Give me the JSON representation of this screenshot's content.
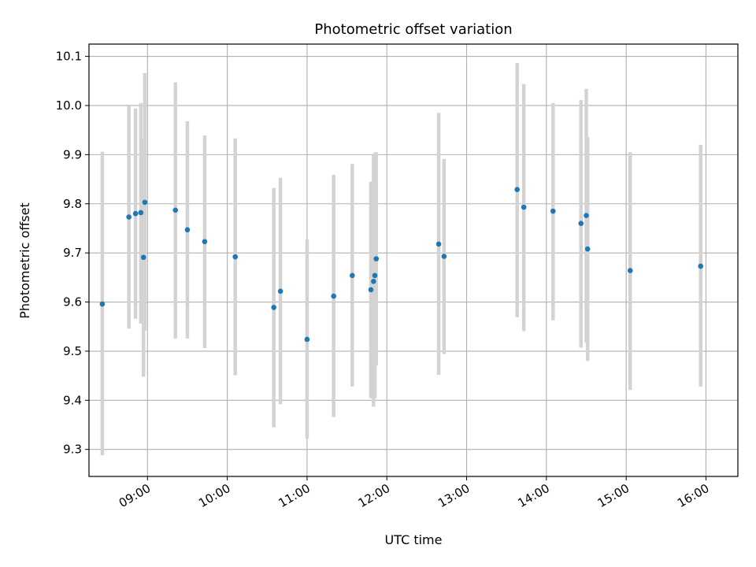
{
  "chart_data": {
    "type": "scatter",
    "title": "Photometric offset variation",
    "xlabel": "UTC time",
    "ylabel": "Photometric offset",
    "grid": true,
    "xlim": [
      "08:16",
      "16:24"
    ],
    "ylim": [
      9.245,
      10.125
    ],
    "x_ticks": [
      "09:00",
      "10:00",
      "11:00",
      "12:00",
      "13:00",
      "14:00",
      "15:00",
      "16:00"
    ],
    "y_ticks": [
      "9.3",
      "9.4",
      "9.5",
      "9.6",
      "9.7",
      "9.8",
      "9.9",
      "10.0",
      "10.1"
    ],
    "point_color": "#1f77b4",
    "errorbar_color": "#d3d3d3",
    "series": [
      {
        "points": [
          {
            "t": "08:26",
            "y": 9.596,
            "lo": 9.288,
            "hi": 9.906
          },
          {
            "t": "08:46",
            "y": 9.773,
            "lo": 9.546,
            "hi": 9.999
          },
          {
            "t": "08:51",
            "y": 9.78,
            "lo": 9.566,
            "hi": 9.994
          },
          {
            "t": "08:55",
            "y": 9.782,
            "lo": 9.556,
            "hi": 10.005
          },
          {
            "t": "08:57",
            "y": 9.691,
            "lo": 9.448,
            "hi": 9.935
          },
          {
            "t": "08:58",
            "y": 9.803,
            "lo": 9.542,
            "hi": 10.066
          },
          {
            "t": "09:21",
            "y": 9.787,
            "lo": 9.526,
            "hi": 10.047
          },
          {
            "t": "09:30",
            "y": 9.747,
            "lo": 9.526,
            "hi": 9.968
          },
          {
            "t": "09:43",
            "y": 9.723,
            "lo": 9.506,
            "hi": 9.939
          },
          {
            "t": "10:06",
            "y": 9.692,
            "lo": 9.451,
            "hi": 9.933
          },
          {
            "t": "10:35",
            "y": 9.589,
            "lo": 9.345,
            "hi": 9.832
          },
          {
            "t": "10:40",
            "y": 9.622,
            "lo": 9.392,
            "hi": 9.853
          },
          {
            "t": "11:00",
            "y": 9.524,
            "lo": 9.322,
            "hi": 9.727
          },
          {
            "t": "11:20",
            "y": 9.612,
            "lo": 9.366,
            "hi": 9.859
          },
          {
            "t": "11:34",
            "y": 9.654,
            "lo": 9.428,
            "hi": 9.881
          },
          {
            "t": "11:48",
            "y": 9.625,
            "lo": 9.404,
            "hi": 9.845
          },
          {
            "t": "11:50",
            "y": 9.642,
            "lo": 9.387,
            "hi": 9.899
          },
          {
            "t": "11:51",
            "y": 9.654,
            "lo": 9.404,
            "hi": 9.904
          },
          {
            "t": "11:52",
            "y": 9.688,
            "lo": 9.471,
            "hi": 9.905
          },
          {
            "t": "12:39",
            "y": 9.718,
            "lo": 9.452,
            "hi": 9.985
          },
          {
            "t": "12:43",
            "y": 9.693,
            "lo": 9.494,
            "hi": 9.891
          },
          {
            "t": "13:38",
            "y": 9.829,
            "lo": 9.569,
            "hi": 10.087
          },
          {
            "t": "13:43",
            "y": 9.793,
            "lo": 9.541,
            "hi": 10.044
          },
          {
            "t": "14:05",
            "y": 9.785,
            "lo": 9.563,
            "hi": 10.005
          },
          {
            "t": "14:26",
            "y": 9.76,
            "lo": 9.507,
            "hi": 10.011
          },
          {
            "t": "14:30",
            "y": 9.776,
            "lo": 9.517,
            "hi": 10.034
          },
          {
            "t": "14:31",
            "y": 9.708,
            "lo": 9.48,
            "hi": 9.936
          },
          {
            "t": "15:03",
            "y": 9.664,
            "lo": 9.421,
            "hi": 9.905
          },
          {
            "t": "15:56",
            "y": 9.673,
            "lo": 9.428,
            "hi": 9.92
          }
        ]
      }
    ]
  }
}
